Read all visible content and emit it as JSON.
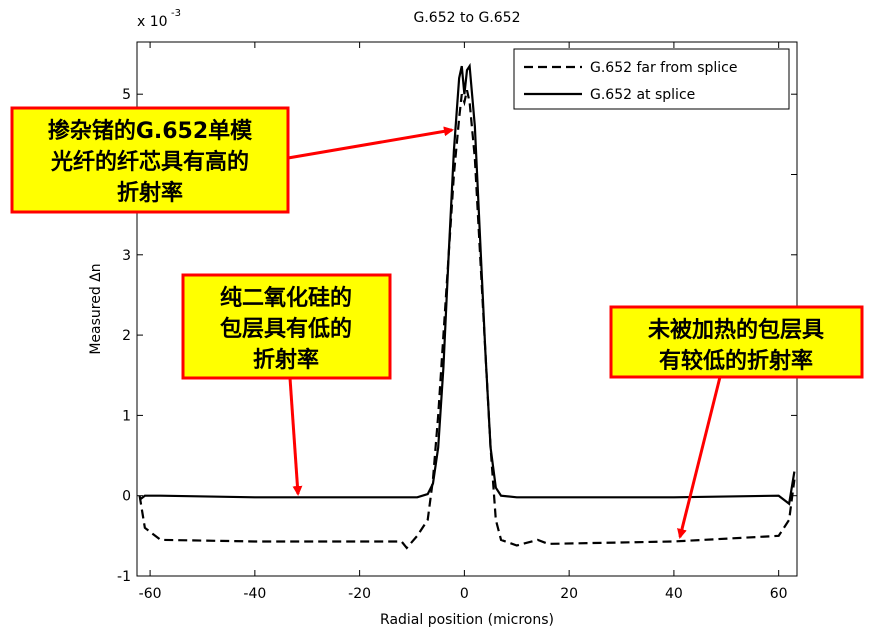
{
  "chart_data": {
    "type": "line",
    "title": "G.652 to G.652",
    "x_label": "Radial position (microns)",
    "y_label": "Measured Δn",
    "y_multiplier": "x 10",
    "y_multiplier_exponent": "-3",
    "x": [
      -62,
      -61,
      -58,
      -40,
      -20,
      -12,
      -11,
      -9,
      -7,
      -6,
      -5,
      -4,
      -3,
      -2,
      -1,
      -0.5,
      0,
      0.5,
      1,
      2,
      3,
      4,
      5,
      6,
      7,
      10,
      14,
      16,
      40,
      60,
      62,
      63
    ],
    "series": [
      {
        "name": "G.652 far from splice",
        "color": "#000000",
        "dash": "dashed",
        "values": [
          0,
          -0.4,
          -0.55,
          -0.57,
          -0.57,
          -0.57,
          -0.65,
          -0.5,
          -0.3,
          0.2,
          1,
          2,
          3,
          4,
          4.7,
          5.0,
          4.9,
          5.05,
          4.9,
          4.2,
          3,
          1.8,
          0.6,
          -0.3,
          -0.55,
          -0.62,
          -0.55,
          -0.6,
          -0.57,
          -0.5,
          -0.3,
          0.2
        ]
      },
      {
        "name": "G.652 at splice",
        "color": "#000000",
        "dash": "solid",
        "values": [
          -0.05,
          0,
          0,
          -0.02,
          -0.02,
          -0.02,
          -0.02,
          -0.02,
          0.02,
          0.15,
          0.6,
          1.6,
          3,
          4.3,
          5.2,
          5.35,
          5.0,
          5.3,
          5.35,
          4.6,
          3.2,
          1.8,
          0.6,
          0.1,
          0,
          -0.02,
          -0.02,
          -0.02,
          -0.02,
          0,
          -0.1,
          0.3
        ]
      }
    ],
    "xlim": [
      -62.5,
      63.5
    ],
    "ylim": [
      -1,
      5.65
    ],
    "xticks": [
      -60,
      -40,
      -20,
      0,
      20,
      40,
      60
    ],
    "yticks": [
      -1,
      0,
      1,
      2,
      3,
      4,
      5
    ],
    "legend": "northeast",
    "annotations": [
      {
        "lines": [
          "掺杂锗的G.652单模",
          "光纤的纤芯具有高的",
          "折射率"
        ]
      },
      {
        "lines": [
          "纯二氧化硅的",
          "包层具有低的",
          "折射率"
        ]
      },
      {
        "lines": [
          "未被加热的包层具",
          "有较低的折射率"
        ]
      }
    ]
  }
}
